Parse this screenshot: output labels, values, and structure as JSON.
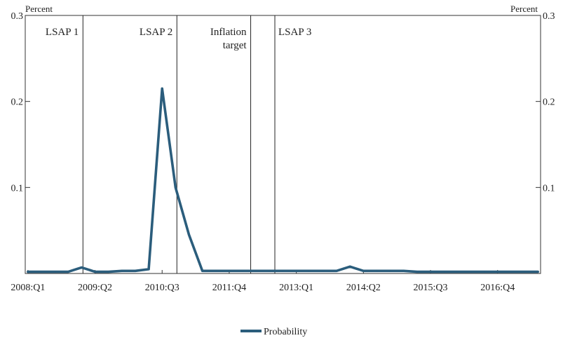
{
  "chart_data": {
    "type": "line",
    "title": "",
    "y_unit_left": "Percent",
    "y_unit_right": "Percent",
    "ylim": [
      0,
      0.3
    ],
    "y_ticks": [
      {
        "value": 0.1,
        "label": "0.1"
      },
      {
        "value": 0.2,
        "label": "0.2"
      },
      {
        "value": 0.3,
        "label": "0.3"
      }
    ],
    "x_tick_labels": [
      "2008:Q1",
      "2009:Q2",
      "2010:Q3",
      "2011:Q4",
      "2013:Q1",
      "2014:Q2",
      "2015:Q3",
      "2016:Q4"
    ],
    "x_tick_positions": [
      0,
      5,
      10,
      15,
      20,
      25,
      30,
      35
    ],
    "xlim": [
      -0.2,
      38.2
    ],
    "grid": false,
    "legend_position": "bottom-center",
    "color": "#2b5d7c",
    "series": [
      {
        "name": "Probability",
        "x": [
          0,
          1,
          2,
          3,
          4,
          5,
          6,
          7,
          8,
          9,
          10,
          11,
          12,
          13,
          14,
          15,
          16,
          17,
          18,
          19,
          20,
          21,
          22,
          23,
          24,
          25,
          26,
          27,
          28,
          29,
          30,
          31,
          32,
          33,
          34,
          35,
          36,
          37,
          38
        ],
        "values": [
          0.002,
          0.002,
          0.002,
          0.002,
          0.007,
          0.002,
          0.002,
          0.003,
          0.003,
          0.005,
          0.215,
          0.1,
          0.045,
          0.003,
          0.003,
          0.003,
          0.003,
          0.003,
          0.003,
          0.003,
          0.003,
          0.003,
          0.003,
          0.003,
          0.008,
          0.003,
          0.003,
          0.003,
          0.003,
          0.002,
          0.002,
          0.002,
          0.002,
          0.002,
          0.002,
          0.002,
          0.002,
          0.002,
          0.002
        ]
      }
    ],
    "events": [
      {
        "x": 4.1,
        "lines": [
          "LSAP 1"
        ]
      },
      {
        "x": 11.1,
        "lines": [
          "LSAP 2"
        ]
      },
      {
        "x": 16.6,
        "lines": [
          "Inflation",
          "target"
        ]
      },
      {
        "x": 18.4,
        "lines": [
          "LSAP 3"
        ]
      }
    ]
  }
}
